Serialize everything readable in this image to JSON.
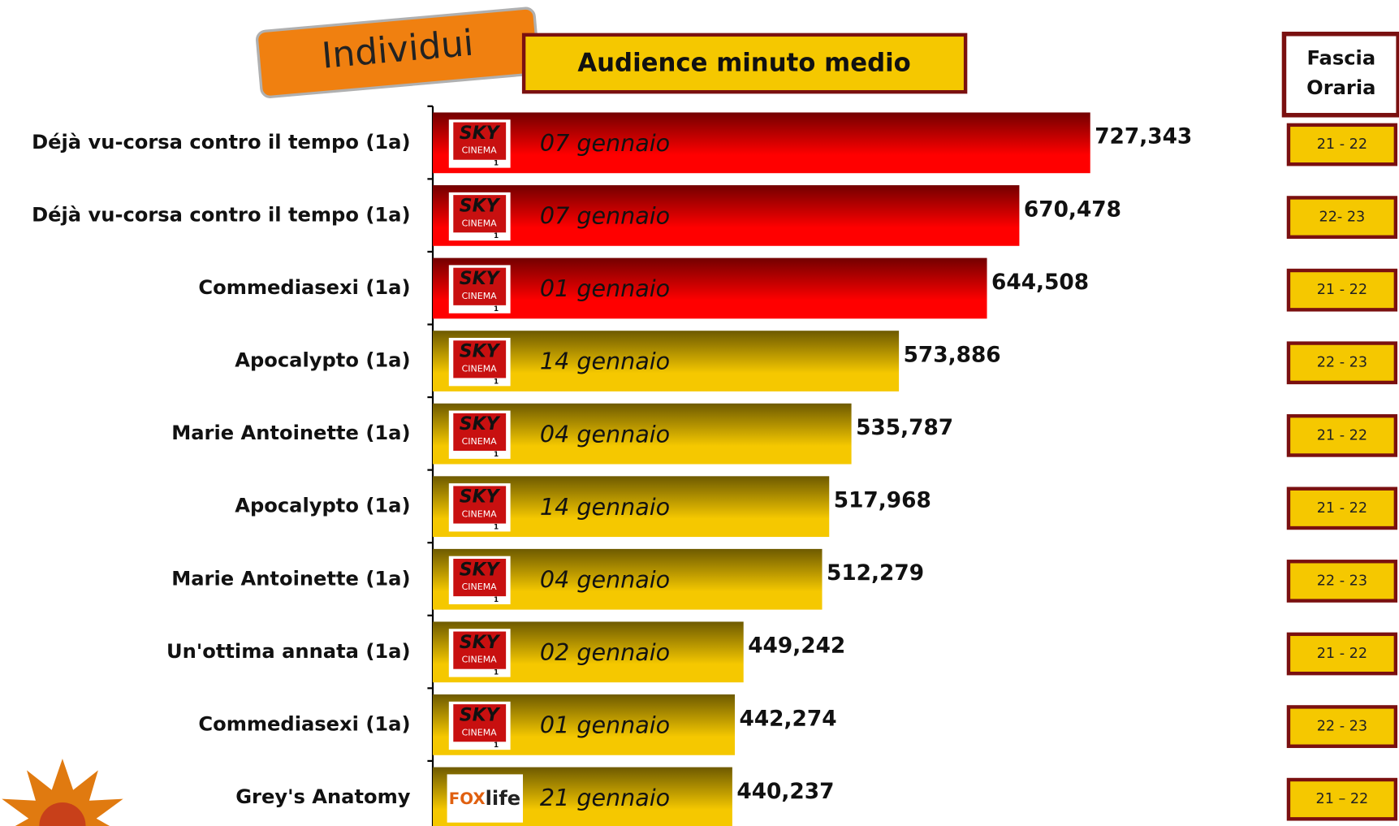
{
  "chart_data": {
    "type": "bar",
    "orientation": "horizontal",
    "title": "Audience minuto medio",
    "tab_label": "Individui",
    "time_header": [
      "Fascia",
      "Oraria"
    ],
    "categories": [
      "Déjà vu-corsa contro il tempo (1a)",
      "Déjà vu-corsa contro il tempo (1a)",
      "Commediasexi (1a)",
      "Apocalypto (1a)",
      "Marie Antoinette (1a)",
      "Apocalypto (1a)",
      "Marie Antoinette (1a)",
      "Un'ottima annata (1a)",
      "Commediasexi (1a)",
      "Grey's Anatomy"
    ],
    "values": [
      727343,
      670478,
      644508,
      573886,
      535787,
      517968,
      512279,
      449242,
      442274,
      440237
    ],
    "value_labels": [
      "727,343",
      "670,478",
      "644,508",
      "573,886",
      "535,787",
      "517,968",
      "512,279",
      "449,242",
      "442,274",
      "440,237"
    ],
    "dates": [
      "07 gennaio",
      "07 gennaio",
      "01 gennaio",
      "14 gennaio",
      "04 gennaio",
      "14 gennaio",
      "04 gennaio",
      "02 gennaio",
      "01 gennaio",
      "21 gennaio"
    ],
    "channels": [
      [
        "SKY",
        "CINEMA",
        "1"
      ],
      [
        "SKY",
        "CINEMA",
        "1"
      ],
      [
        "SKY",
        "CINEMA",
        "1"
      ],
      [
        "SKY",
        "CINEMA",
        "1"
      ],
      [
        "SKY",
        "CINEMA",
        "1"
      ],
      [
        "SKY",
        "CINEMA",
        "1"
      ],
      [
        "SKY",
        "CINEMA",
        "1"
      ],
      [
        "SKY",
        "CINEMA",
        "1"
      ],
      [
        "SKY",
        "CINEMA",
        "1"
      ],
      [
        "FOX",
        "life"
      ]
    ],
    "time_slots": [
      "21 - 22",
      "22- 23",
      "21 - 22",
      "22 - 23",
      "21 - 22",
      "21 - 22",
      "22 - 23",
      "21 - 22",
      "22 - 23",
      "21 – 22"
    ],
    "colors": [
      "#ff0000",
      "#ff0000",
      "#ff0000",
      "#f5c800",
      "#f5c800",
      "#f5c800",
      "#f5c800",
      "#f5c800",
      "#f5c800",
      "#f5c800"
    ],
    "xlim": [
      200000,
      900000
    ]
  }
}
